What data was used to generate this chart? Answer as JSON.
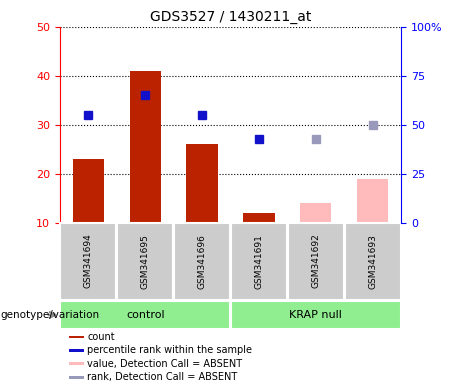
{
  "title": "GDS3527 / 1430211_at",
  "samples": [
    "GSM341694",
    "GSM341695",
    "GSM341696",
    "GSM341691",
    "GSM341692",
    "GSM341693"
  ],
  "groups": [
    "control",
    "control",
    "control",
    "KRAP null",
    "KRAP null",
    "KRAP null"
  ],
  "group_names": [
    "control",
    "KRAP null"
  ],
  "group_color": "#90ee90",
  "sample_box_color": "#cccccc",
  "bar_color_present": "#bb2200",
  "bar_color_absent": "#ffbbbb",
  "dot_color_present": "#1111cc",
  "dot_color_absent": "#9999bb",
  "ylim_left": [
    10,
    50
  ],
  "ylim_right": [
    0,
    100
  ],
  "yticks_left": [
    10,
    20,
    30,
    40,
    50
  ],
  "yticks_right": [
    0,
    25,
    50,
    75,
    100
  ],
  "count_present": [
    23,
    41,
    26,
    12,
    null,
    null
  ],
  "rank_present": [
    32,
    36,
    32,
    27,
    null,
    null
  ],
  "count_absent": [
    null,
    null,
    null,
    null,
    14,
    19
  ],
  "rank_absent": [
    null,
    null,
    null,
    null,
    27,
    30
  ],
  "genotype_label": "genotype/variation",
  "legend_items": [
    {
      "label": "count",
      "color": "#bb2200"
    },
    {
      "label": "percentile rank within the sample",
      "color": "#1111cc"
    },
    {
      "label": "value, Detection Call = ABSENT",
      "color": "#ffbbbb"
    },
    {
      "label": "rank, Detection Call = ABSENT",
      "color": "#9999bb"
    }
  ]
}
